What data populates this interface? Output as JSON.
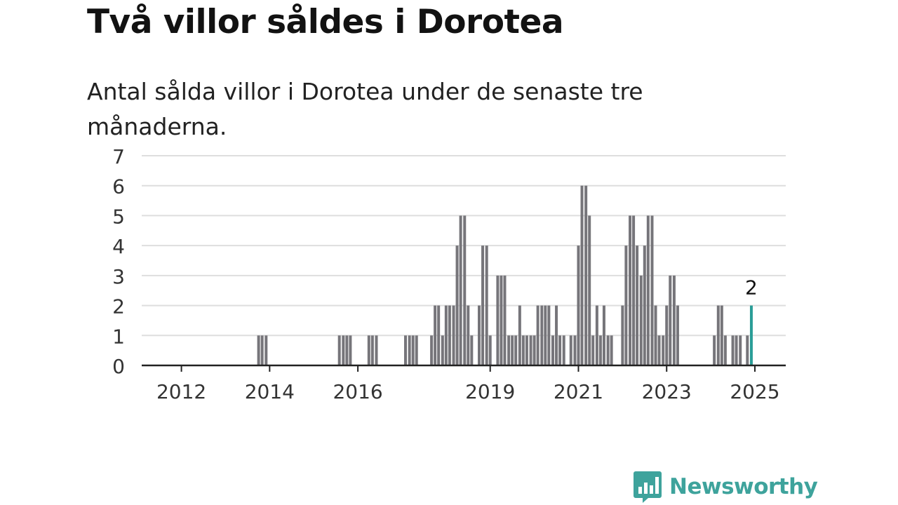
{
  "title": "Två villor såldes i Dorotea",
  "subtitle": "Antal sålda villor i Dorotea under de senaste tre månaderna.",
  "brand": "Newsworthy",
  "colors": {
    "bar": "#76757a",
    "highlight": "#2a9d97",
    "grid": "#dedede",
    "axis": "#222222",
    "brand": "#3ea39c"
  },
  "chart_data": {
    "type": "bar",
    "ylim": [
      0,
      7
    ],
    "yticks": [
      "0",
      "1",
      "2",
      "3",
      "4",
      "5",
      "6",
      "7"
    ],
    "xticks": [
      {
        "label": "2012",
        "x": 2012.0
      },
      {
        "label": "2014",
        "x": 2014.0
      },
      {
        "label": "2016",
        "x": 2016.0
      },
      {
        "label": "2019",
        "x": 2019.0
      },
      {
        "label": "2021",
        "x": 2021.0
      },
      {
        "label": "2023",
        "x": 2023.0
      },
      {
        "label": "2025",
        "x": 2025.0
      }
    ],
    "xlim": [
      2011.1,
      2025.7
    ],
    "values": [
      {
        "x": 2013.75,
        "y": 1
      },
      {
        "x": 2013.83,
        "y": 1
      },
      {
        "x": 2013.92,
        "y": 1
      },
      {
        "x": 2015.58,
        "y": 1
      },
      {
        "x": 2015.67,
        "y": 1
      },
      {
        "x": 2015.75,
        "y": 1
      },
      {
        "x": 2015.83,
        "y": 1
      },
      {
        "x": 2016.25,
        "y": 1
      },
      {
        "x": 2016.33,
        "y": 1
      },
      {
        "x": 2016.42,
        "y": 1
      },
      {
        "x": 2017.08,
        "y": 1
      },
      {
        "x": 2017.17,
        "y": 1
      },
      {
        "x": 2017.25,
        "y": 1
      },
      {
        "x": 2017.33,
        "y": 1
      },
      {
        "x": 2017.67,
        "y": 1
      },
      {
        "x": 2017.75,
        "y": 2
      },
      {
        "x": 2017.83,
        "y": 2
      },
      {
        "x": 2017.92,
        "y": 1
      },
      {
        "x": 2018.0,
        "y": 2
      },
      {
        "x": 2018.08,
        "y": 2
      },
      {
        "x": 2018.17,
        "y": 2
      },
      {
        "x": 2018.25,
        "y": 4
      },
      {
        "x": 2018.33,
        "y": 5
      },
      {
        "x": 2018.42,
        "y": 5
      },
      {
        "x": 2018.5,
        "y": 2
      },
      {
        "x": 2018.58,
        "y": 1
      },
      {
        "x": 2018.75,
        "y": 2
      },
      {
        "x": 2018.83,
        "y": 4
      },
      {
        "x": 2018.92,
        "y": 4
      },
      {
        "x": 2019.0,
        "y": 1
      },
      {
        "x": 2019.17,
        "y": 3
      },
      {
        "x": 2019.25,
        "y": 3
      },
      {
        "x": 2019.33,
        "y": 3
      },
      {
        "x": 2019.42,
        "y": 1
      },
      {
        "x": 2019.5,
        "y": 1
      },
      {
        "x": 2019.58,
        "y": 1
      },
      {
        "x": 2019.67,
        "y": 2
      },
      {
        "x": 2019.75,
        "y": 1
      },
      {
        "x": 2019.83,
        "y": 1
      },
      {
        "x": 2019.92,
        "y": 1
      },
      {
        "x": 2020.0,
        "y": 1
      },
      {
        "x": 2020.08,
        "y": 2
      },
      {
        "x": 2020.17,
        "y": 2
      },
      {
        "x": 2020.25,
        "y": 2
      },
      {
        "x": 2020.33,
        "y": 2
      },
      {
        "x": 2020.42,
        "y": 1
      },
      {
        "x": 2020.5,
        "y": 2
      },
      {
        "x": 2020.58,
        "y": 1
      },
      {
        "x": 2020.67,
        "y": 1
      },
      {
        "x": 2020.83,
        "y": 1
      },
      {
        "x": 2020.92,
        "y": 1
      },
      {
        "x": 2021.0,
        "y": 4
      },
      {
        "x": 2021.08,
        "y": 6
      },
      {
        "x": 2021.17,
        "y": 6
      },
      {
        "x": 2021.25,
        "y": 5
      },
      {
        "x": 2021.33,
        "y": 1
      },
      {
        "x": 2021.42,
        "y": 2
      },
      {
        "x": 2021.5,
        "y": 1
      },
      {
        "x": 2021.58,
        "y": 2
      },
      {
        "x": 2021.67,
        "y": 1
      },
      {
        "x": 2021.75,
        "y": 1
      },
      {
        "x": 2022.0,
        "y": 2
      },
      {
        "x": 2022.08,
        "y": 4
      },
      {
        "x": 2022.17,
        "y": 5
      },
      {
        "x": 2022.25,
        "y": 5
      },
      {
        "x": 2022.33,
        "y": 4
      },
      {
        "x": 2022.42,
        "y": 3
      },
      {
        "x": 2022.5,
        "y": 4
      },
      {
        "x": 2022.58,
        "y": 5
      },
      {
        "x": 2022.67,
        "y": 5
      },
      {
        "x": 2022.75,
        "y": 2
      },
      {
        "x": 2022.83,
        "y": 1
      },
      {
        "x": 2022.92,
        "y": 1
      },
      {
        "x": 2023.0,
        "y": 2
      },
      {
        "x": 2023.08,
        "y": 3
      },
      {
        "x": 2023.17,
        "y": 3
      },
      {
        "x": 2023.25,
        "y": 2
      },
      {
        "x": 2024.08,
        "y": 1
      },
      {
        "x": 2024.17,
        "y": 2
      },
      {
        "x": 2024.25,
        "y": 2
      },
      {
        "x": 2024.33,
        "y": 1
      },
      {
        "x": 2024.5,
        "y": 1
      },
      {
        "x": 2024.58,
        "y": 1
      },
      {
        "x": 2024.67,
        "y": 1
      },
      {
        "x": 2024.83,
        "y": 1
      },
      {
        "x": 2024.92,
        "y": 2
      }
    ],
    "highlight": {
      "x": 2024.92,
      "y": 2,
      "label": "2"
    },
    "grid": true,
    "legend": "none"
  }
}
